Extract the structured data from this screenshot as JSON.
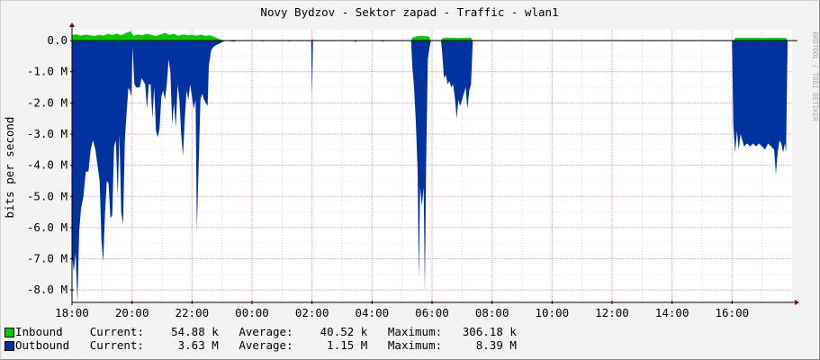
{
  "chart_data": {
    "type": "area",
    "title": "Novy Bydzov - Sektor zapad - Traffic - wlan1",
    "ylabel": "bits per second",
    "watermark": "RRDTOOL / TOBI OETIKER",
    "ylim": [
      -8.4,
      0.35
    ],
    "y_ticks": [
      {
        "v": 0,
        "label": "0.0"
      },
      {
        "v": -1,
        "label": "-1.0 M"
      },
      {
        "v": -2,
        "label": "-2.0 M"
      },
      {
        "v": -3,
        "label": "-3.0 M"
      },
      {
        "v": -4,
        "label": "-4.0 M"
      },
      {
        "v": -5,
        "label": "-5.0 M"
      },
      {
        "v": -6,
        "label": "-6.0 M"
      },
      {
        "v": -7,
        "label": "-7.0 M"
      },
      {
        "v": -8,
        "label": "-8.0 M"
      }
    ],
    "x_range": [
      0,
      24
    ],
    "x_ticks": [
      {
        "v": 0,
        "label": "18:00"
      },
      {
        "v": 2,
        "label": "20:00"
      },
      {
        "v": 4,
        "label": "22:00"
      },
      {
        "v": 6,
        "label": "00:00"
      },
      {
        "v": 8,
        "label": "02:00"
      },
      {
        "v": 10,
        "label": "04:00"
      },
      {
        "v": 12,
        "label": "06:00"
      },
      {
        "v": 14,
        "label": "08:00"
      },
      {
        "v": 16,
        "label": "10:00"
      },
      {
        "v": 18,
        "label": "12:00"
      },
      {
        "v": 20,
        "label": "14:00"
      },
      {
        "v": 22,
        "label": "16:00"
      }
    ],
    "series": [
      {
        "name": "Inbound",
        "color": "#00cc00",
        "unit": "Mbit/s",
        "points": [
          [
            0.0,
            0.18
          ],
          [
            0.15,
            0.2
          ],
          [
            0.3,
            0.16
          ],
          [
            0.45,
            0.19
          ],
          [
            0.6,
            0.17
          ],
          [
            0.75,
            0.15
          ],
          [
            0.9,
            0.18
          ],
          [
            1.05,
            0.16
          ],
          [
            1.2,
            0.21
          ],
          [
            1.35,
            0.18
          ],
          [
            1.5,
            0.22
          ],
          [
            1.65,
            0.17
          ],
          [
            1.8,
            0.25
          ],
          [
            1.95,
            0.3
          ],
          [
            2.05,
            0.15
          ],
          [
            2.2,
            0.2
          ],
          [
            2.35,
            0.17
          ],
          [
            2.5,
            0.22
          ],
          [
            2.65,
            0.18
          ],
          [
            2.8,
            0.15
          ],
          [
            2.95,
            0.2
          ],
          [
            3.1,
            0.25
          ],
          [
            3.25,
            0.18
          ],
          [
            3.4,
            0.22
          ],
          [
            3.55,
            0.15
          ],
          [
            3.7,
            0.2
          ],
          [
            3.85,
            0.17
          ],
          [
            4.0,
            0.18
          ],
          [
            4.15,
            0.16
          ],
          [
            4.3,
            0.19
          ],
          [
            4.45,
            0.15
          ],
          [
            4.6,
            0.17
          ],
          [
            4.75,
            0.12
          ],
          [
            4.9,
            0.05
          ],
          [
            5.0,
            0.02
          ],
          [
            5.1,
            0.0
          ],
          [
            7.98,
            0.0
          ],
          [
            8.0,
            0.06
          ],
          [
            8.05,
            0.0
          ],
          [
            11.3,
            0.0
          ],
          [
            11.35,
            0.1
          ],
          [
            11.5,
            0.14
          ],
          [
            11.7,
            0.15
          ],
          [
            11.9,
            0.13
          ],
          [
            11.95,
            0.0
          ],
          [
            12.3,
            0.0
          ],
          [
            12.35,
            0.08
          ],
          [
            12.6,
            0.09
          ],
          [
            12.9,
            0.08
          ],
          [
            13.3,
            0.09
          ],
          [
            13.35,
            0.0
          ],
          [
            22.05,
            0.0
          ],
          [
            22.1,
            0.08
          ],
          [
            22.5,
            0.09
          ],
          [
            23.0,
            0.08
          ],
          [
            23.5,
            0.09
          ],
          [
            23.8,
            0.08
          ],
          [
            23.85,
            0.0
          ],
          [
            24.0,
            0.0
          ]
        ]
      },
      {
        "name": "Outbound",
        "color": "#0033a0",
        "unit": "Mbit/s",
        "points": [
          [
            0.0,
            -6.9
          ],
          [
            0.06,
            -7.4
          ],
          [
            0.12,
            -6.8
          ],
          [
            0.18,
            -8.4
          ],
          [
            0.24,
            -6.1
          ],
          [
            0.3,
            -5.4
          ],
          [
            0.38,
            -5.0
          ],
          [
            0.46,
            -4.2
          ],
          [
            0.55,
            -4.2
          ],
          [
            0.62,
            -3.5
          ],
          [
            0.7,
            -3.2
          ],
          [
            0.78,
            -3.5
          ],
          [
            0.85,
            -4.0
          ],
          [
            0.92,
            -4.5
          ],
          [
            0.98,
            -6.4
          ],
          [
            1.04,
            -7.1
          ],
          [
            1.1,
            -5.5
          ],
          [
            1.16,
            -4.5
          ],
          [
            1.22,
            -4.6
          ],
          [
            1.28,
            -5.7
          ],
          [
            1.34,
            -5.6
          ],
          [
            1.4,
            -3.4
          ],
          [
            1.46,
            -3.2
          ],
          [
            1.52,
            -5.0
          ],
          [
            1.58,
            -3.0
          ],
          [
            1.64,
            -5.5
          ],
          [
            1.7,
            -5.9
          ],
          [
            1.76,
            -3.2
          ],
          [
            1.82,
            -2.3
          ],
          [
            1.88,
            -1.5
          ],
          [
            1.93,
            -1.6
          ],
          [
            1.98,
            -1.8
          ],
          [
            2.02,
            -0.2
          ],
          [
            2.08,
            -1.4
          ],
          [
            2.14,
            -1.5
          ],
          [
            2.2,
            -1.5
          ],
          [
            2.26,
            -1.5
          ],
          [
            2.32,
            -1.2
          ],
          [
            2.38,
            -1.3
          ],
          [
            2.44,
            -1.4
          ],
          [
            2.5,
            -2.2
          ],
          [
            2.56,
            -1.4
          ],
          [
            2.62,
            -1.4
          ],
          [
            2.68,
            -2.5
          ],
          [
            2.74,
            -1.5
          ],
          [
            2.8,
            -2.9
          ],
          [
            2.86,
            -3.1
          ],
          [
            2.92,
            -2.8
          ],
          [
            2.98,
            -1.8
          ],
          [
            3.04,
            -1.6
          ],
          [
            3.1,
            -1.9
          ],
          [
            3.16,
            -1.4
          ],
          [
            3.22,
            -0.6
          ],
          [
            3.28,
            -1.0
          ],
          [
            3.34,
            -2.7
          ],
          [
            3.4,
            -2.0
          ],
          [
            3.46,
            -2.8
          ],
          [
            3.52,
            -1.4
          ],
          [
            3.58,
            -1.9
          ],
          [
            3.64,
            -3.0
          ],
          [
            3.7,
            -3.7
          ],
          [
            3.76,
            -2.5
          ],
          [
            3.82,
            -1.6
          ],
          [
            3.88,
            -1.9
          ],
          [
            3.94,
            -1.4
          ],
          [
            4.0,
            -1.8
          ],
          [
            4.06,
            -2.2
          ],
          [
            4.12,
            -1.9
          ],
          [
            4.16,
            -6.1
          ],
          [
            4.22,
            -4.0
          ],
          [
            4.28,
            -1.9
          ],
          [
            4.34,
            -1.7
          ],
          [
            4.4,
            -1.9
          ],
          [
            4.46,
            -2.0
          ],
          [
            4.52,
            -2.1
          ],
          [
            4.56,
            -0.8
          ],
          [
            4.64,
            -0.3
          ],
          [
            4.72,
            -0.2
          ],
          [
            4.8,
            -0.15
          ],
          [
            4.9,
            -0.1
          ],
          [
            5.0,
            -0.05
          ],
          [
            5.1,
            0.0
          ],
          [
            5.4,
            -0.03
          ],
          [
            5.5,
            0.0
          ],
          [
            6.3,
            0.0
          ],
          [
            6.35,
            -0.03
          ],
          [
            6.4,
            0.0
          ],
          [
            7.2,
            0.0
          ],
          [
            7.25,
            -0.03
          ],
          [
            7.3,
            0.0
          ],
          [
            7.97,
            0.0
          ],
          [
            8.0,
            -1.8
          ],
          [
            8.03,
            0.0
          ],
          [
            9.4,
            0.0
          ],
          [
            9.45,
            -0.05
          ],
          [
            9.5,
            0.0
          ],
          [
            10.3,
            0.0
          ],
          [
            10.35,
            -0.04
          ],
          [
            10.4,
            0.0
          ],
          [
            11.3,
            0.0
          ],
          [
            11.34,
            -0.8
          ],
          [
            11.4,
            -1.5
          ],
          [
            11.46,
            -2.6
          ],
          [
            11.52,
            -4.2
          ],
          [
            11.56,
            -7.7
          ],
          [
            11.6,
            -4.7
          ],
          [
            11.66,
            -5.3
          ],
          [
            11.72,
            -4.7
          ],
          [
            11.76,
            -8.1
          ],
          [
            11.8,
            -4.2
          ],
          [
            11.86,
            -0.6
          ],
          [
            11.92,
            -0.2
          ],
          [
            11.96,
            0.0
          ],
          [
            12.3,
            0.0
          ],
          [
            12.34,
            -0.4
          ],
          [
            12.4,
            -1.2
          ],
          [
            12.46,
            -1.1
          ],
          [
            12.52,
            -1.4
          ],
          [
            12.58,
            -1.3
          ],
          [
            12.64,
            -1.5
          ],
          [
            12.7,
            -1.4
          ],
          [
            12.76,
            -1.8
          ],
          [
            12.82,
            -2.5
          ],
          [
            12.88,
            -1.9
          ],
          [
            12.94,
            -2.1
          ],
          [
            13.0,
            -1.9
          ],
          [
            13.06,
            -1.7
          ],
          [
            13.12,
            -1.5
          ],
          [
            13.18,
            -2.2
          ],
          [
            13.24,
            -1.6
          ],
          [
            13.3,
            -1.4
          ],
          [
            13.36,
            0.0
          ],
          [
            22.0,
            0.0
          ],
          [
            22.04,
            -2.7
          ],
          [
            22.1,
            -3.6
          ],
          [
            22.16,
            -2.9
          ],
          [
            22.22,
            -3.5
          ],
          [
            22.28,
            -3.0
          ],
          [
            22.34,
            -3.2
          ],
          [
            22.4,
            -3.4
          ],
          [
            22.5,
            -3.3
          ],
          [
            22.6,
            -3.4
          ],
          [
            22.7,
            -3.3
          ],
          [
            22.8,
            -3.4
          ],
          [
            22.9,
            -3.3
          ],
          [
            23.0,
            -3.4
          ],
          [
            23.1,
            -3.5
          ],
          [
            23.2,
            -3.3
          ],
          [
            23.3,
            -3.4
          ],
          [
            23.4,
            -3.5
          ],
          [
            23.46,
            -4.3
          ],
          [
            23.52,
            -3.6
          ],
          [
            23.58,
            -3.2
          ],
          [
            23.64,
            -3.3
          ],
          [
            23.7,
            -3.6
          ],
          [
            23.76,
            -3.3
          ],
          [
            23.8,
            -3.6
          ],
          [
            23.85,
            0.0
          ],
          [
            24.0,
            0.0
          ]
        ]
      }
    ]
  },
  "legend": {
    "inbound": {
      "text": "Inbound    Current:    54.88 k   Average:    40.52 k   Maximum:   306.18 k",
      "color": "#00cc00"
    },
    "outbound": {
      "text": "Outbound   Current:     3.63 M   Average:     1.15 M   Maximum:     8.39 M",
      "color": "#0033a0"
    }
  }
}
